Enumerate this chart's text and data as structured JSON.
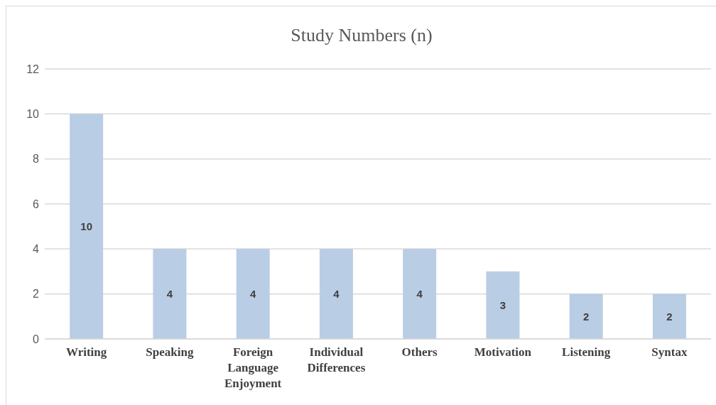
{
  "chart_data": {
    "type": "bar",
    "title": "Study Numbers (n)",
    "categories": [
      "Writing",
      "Speaking",
      "Foreign Language Enjoyment",
      "Individual Differences",
      "Others",
      "Motivation",
      "Listening",
      "Syntax"
    ],
    "values": [
      10,
      4,
      4,
      4,
      4,
      3,
      2,
      2
    ],
    "color": "#b9cde5",
    "ylim": [
      0,
      12
    ],
    "yticks": [
      0,
      2,
      4,
      6,
      8,
      10,
      12
    ],
    "grid": "y",
    "data_labels": true
  }
}
